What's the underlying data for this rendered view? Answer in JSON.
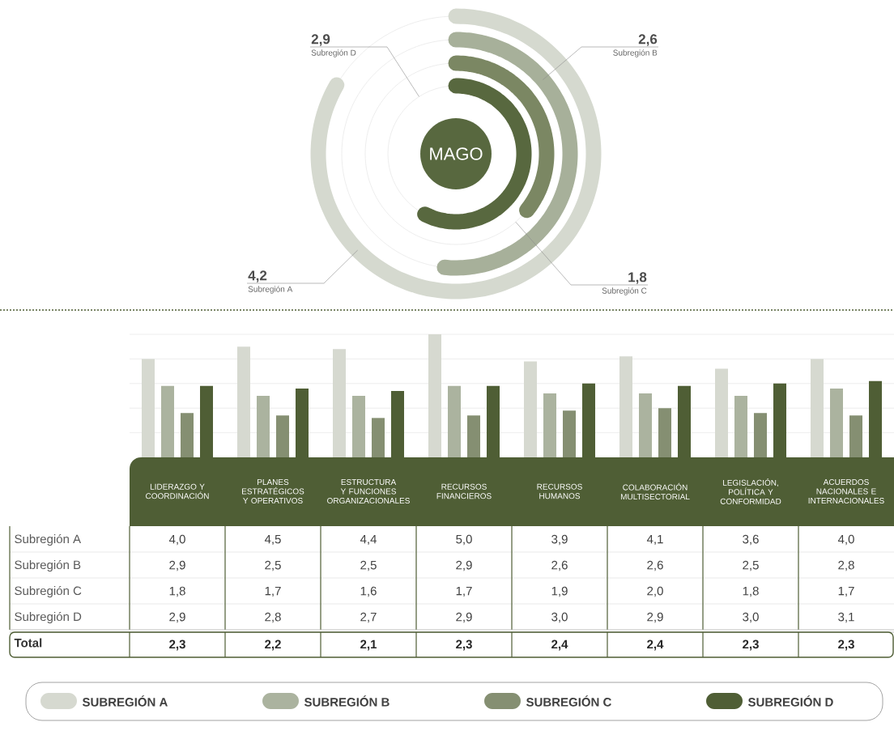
{
  "chart_data": [
    {
      "type": "other",
      "title": "MAGO",
      "categories": [
        "Subregión A",
        "Subregión B",
        "Subregión C",
        "Subregión D"
      ],
      "values": [
        4.2,
        2.6,
        1.8,
        2.9
      ],
      "value_labels": [
        "4,2",
        "2,6",
        "1,8",
        "2,9"
      ],
      "colors": [
        "#d5d9cf",
        "#a7b09a",
        "#7b8763",
        "#58683f"
      ]
    },
    {
      "type": "bar",
      "categories": [
        "LIDERAZGO Y COORDINACIÓN",
        "PLANES ESTRATÉGICOS Y OPERATIVOS",
        "ESTRUCTURA Y FUNCIONES ORGANIZACIONALES",
        "RECURSOS FINANCIEROS",
        "RECURSOS HUMANOS",
        "COLABORACIÓN MULTISECTORIAL",
        "LEGISLACIÓN, POLÍTICA Y CONFORMIDAD",
        "ACUERDOS NACIONALES E INTERNACIONALES"
      ],
      "series": [
        {
          "name": "SUBREGIÓN A",
          "color": "#d6d9d0",
          "values": [
            4.0,
            4.5,
            4.4,
            5.0,
            3.9,
            4.1,
            3.6,
            4.0
          ],
          "value_labels": [
            "4,0",
            "4,5",
            "4,4",
            "5,0",
            "3,9",
            "4,1",
            "3,6",
            "4,0"
          ]
        },
        {
          "name": "SUBREGIÓN B",
          "color": "#abb39f",
          "values": [
            2.9,
            2.5,
            2.5,
            2.9,
            2.6,
            2.6,
            2.5,
            2.8
          ],
          "value_labels": [
            "2,9",
            "2,5",
            "2,5",
            "2,9",
            "2,6",
            "2,6",
            "2,5",
            "2,8"
          ]
        },
        {
          "name": "SUBREGIÓN  C",
          "color": "#858f72",
          "values": [
            1.8,
            1.7,
            1.6,
            1.7,
            1.9,
            2.0,
            1.8,
            1.7
          ],
          "value_labels": [
            "1,8",
            "1,7",
            "1,6",
            "1,7",
            "1,9",
            "2,0",
            "1,8",
            "1,7"
          ]
        },
        {
          "name": "SUBREGIÓN D",
          "color": "#4f5e35",
          "values": [
            2.9,
            2.8,
            2.7,
            2.9,
            3.0,
            2.9,
            3.0,
            3.1
          ],
          "value_labels": [
            "2,9",
            "2,8",
            "2,7",
            "2,9",
            "3,0",
            "2,9",
            "3,0",
            "3,1"
          ]
        }
      ],
      "ylim": [
        0,
        5
      ],
      "yticks": [
        {
          "value": 1,
          "label": null
        },
        {
          "value": 2,
          "label": null
        },
        {
          "value": 3,
          "label": null
        },
        {
          "value": 4,
          "label": null
        },
        {
          "value": 5,
          "label": null
        }
      ],
      "grid": true,
      "tick_labels": "x",
      "legend": "bottom",
      "annotations": [
        "Subregión A",
        "Subregión B",
        "Subregión C",
        "Subregión D",
        "Total",
        "2,3",
        "2,2",
        "2,1",
        "2,3",
        "2,4",
        "2,4",
        "2,3",
        "2,3"
      ]
    }
  ]
}
